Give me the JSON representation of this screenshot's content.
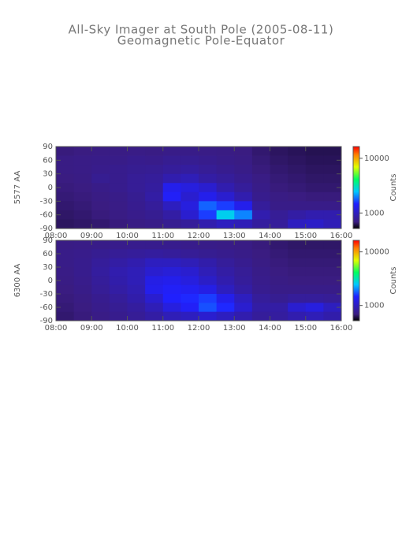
{
  "title": "All-Sky Imager at South Pole (2005-08-11)",
  "subtitle": "Geomagnetic Pole-Equator",
  "chart_data": [
    {
      "type": "heatmap",
      "ylabel": "5577 AA",
      "zlabel": "Counts",
      "x": [
        8.25,
        8.75,
        9.25,
        9.75,
        10.25,
        10.75,
        11.25,
        11.75,
        12.25,
        12.75,
        13.25,
        13.75,
        14.25,
        14.75,
        15.25,
        15.75
      ],
      "y": [
        80,
        60,
        40,
        20,
        0,
        -20,
        -40,
        -60,
        -80
      ],
      "z": [
        [
          680,
          690,
          700,
          700,
          710,
          700,
          720,
          720,
          710,
          700,
          690,
          660,
          640,
          630,
          620,
          620
        ],
        [
          700,
          710,
          720,
          720,
          740,
          730,
          760,
          760,
          740,
          720,
          700,
          670,
          650,
          640,
          630,
          630
        ],
        [
          700,
          710,
          730,
          740,
          760,
          770,
          800,
          820,
          780,
          750,
          720,
          680,
          660,
          650,
          640,
          640
        ],
        [
          690,
          700,
          760,
          740,
          780,
          800,
          900,
          950,
          850,
          800,
          750,
          700,
          670,
          660,
          650,
          650
        ],
        [
          680,
          690,
          720,
          740,
          780,
          820,
          1300,
          1200,
          1100,
          900,
          800,
          720,
          680,
          670,
          660,
          660
        ],
        [
          670,
          680,
          700,
          720,
          760,
          850,
          1400,
          1100,
          1300,
          1100,
          900,
          740,
          700,
          690,
          680,
          680
        ],
        [
          660,
          670,
          690,
          710,
          750,
          800,
          1000,
          1200,
          1800,
          1600,
          1300,
          800,
          720,
          720,
          720,
          720
        ],
        [
          650,
          660,
          680,
          700,
          730,
          760,
          850,
          1100,
          1600,
          2600,
          2000,
          900,
          780,
          850,
          900,
          900
        ],
        [
          640,
          650,
          660,
          680,
          700,
          720,
          760,
          800,
          900,
          1000,
          950,
          820,
          800,
          1000,
          1050,
          950
        ]
      ],
      "xlim": [
        8,
        16
      ],
      "ylim": [
        -90,
        90
      ],
      "xticks": [
        {
          "value": 8,
          "label": "08:00"
        },
        {
          "value": 9,
          "label": "09:00"
        },
        {
          "value": 10,
          "label": "10:00"
        },
        {
          "value": 11,
          "label": "11:00"
        },
        {
          "value": 12,
          "label": "12:00"
        },
        {
          "value": 13,
          "label": "13:00"
        },
        {
          "value": 14,
          "label": "14:00"
        },
        {
          "value": 15,
          "label": "15:00"
        },
        {
          "value": 16,
          "label": "16:00"
        }
      ],
      "yticks": [
        90,
        60,
        30,
        0,
        -30,
        -60,
        -90
      ],
      "zlim": [
        520,
        16400
      ],
      "zticks": [
        1000,
        10000
      ],
      "zlog": true,
      "colormap": [
        [
          0,
          "#000000"
        ],
        [
          0.08,
          "#3a1c80"
        ],
        [
          0.3,
          "#2020ff"
        ],
        [
          0.45,
          "#00c8ff"
        ],
        [
          0.6,
          "#00ff60"
        ],
        [
          0.75,
          "#e0ff00"
        ],
        [
          0.9,
          "#ff8000"
        ],
        [
          1,
          "#ff0000"
        ]
      ]
    },
    {
      "type": "heatmap",
      "ylabel": "6300 AA",
      "zlabel": "Counts",
      "x": [
        8.25,
        8.75,
        9.25,
        9.75,
        10.25,
        10.75,
        11.25,
        11.75,
        12.25,
        12.75,
        13.25,
        13.75,
        14.25,
        14.75,
        15.25,
        15.75
      ],
      "y": [
        80,
        60,
        40,
        20,
        0,
        -20,
        -40,
        -60,
        -80
      ],
      "z": [
        [
          700,
          710,
          720,
          730,
          740,
          740,
          740,
          730,
          720,
          710,
          700,
          680,
          660,
          650,
          650,
          650
        ],
        [
          720,
          730,
          760,
          780,
          800,
          820,
          800,
          780,
          760,
          740,
          720,
          690,
          670,
          660,
          660,
          660
        ],
        [
          720,
          740,
          800,
          850,
          900,
          1000,
          1000,
          950,
          880,
          800,
          750,
          700,
          680,
          670,
          670,
          670
        ],
        [
          710,
          740,
          820,
          900,
          950,
          1100,
          1150,
          1100,
          950,
          850,
          780,
          720,
          690,
          680,
          680,
          680
        ],
        [
          700,
          730,
          800,
          880,
          950,
          1250,
          1300,
          1200,
          1050,
          900,
          800,
          730,
          700,
          690,
          690,
          690
        ],
        [
          690,
          720,
          780,
          850,
          920,
          1300,
          1400,
          1350,
          1250,
          1000,
          850,
          750,
          720,
          720,
          720,
          720
        ],
        [
          680,
          700,
          750,
          800,
          880,
          1100,
          1450,
          1500,
          1600,
          1300,
          1000,
          800,
          760,
          800,
          800,
          780
        ],
        [
          670,
          690,
          730,
          770,
          820,
          950,
          1200,
          1400,
          1700,
          1500,
          1100,
          850,
          850,
          1100,
          1200,
          1000
        ],
        [
          660,
          680,
          710,
          740,
          780,
          850,
          950,
          1000,
          1100,
          1000,
          900,
          800,
          820,
          900,
          950,
          880
        ]
      ],
      "xlim": [
        8,
        16
      ],
      "ylim": [
        -90,
        90
      ],
      "xticks": [
        {
          "value": 8,
          "label": "08:00"
        },
        {
          "value": 9,
          "label": "09:00"
        },
        {
          "value": 10,
          "label": "10:00"
        },
        {
          "value": 11,
          "label": "11:00"
        },
        {
          "value": 12,
          "label": "12:00"
        },
        {
          "value": 13,
          "label": "13:00"
        },
        {
          "value": 14,
          "label": "14:00"
        },
        {
          "value": 15,
          "label": "15:00"
        },
        {
          "value": 16,
          "label": "16:00"
        }
      ],
      "yticks": [
        90,
        60,
        30,
        0,
        -30,
        -60,
        -90
      ],
      "zlim": [
        520,
        16400
      ],
      "zticks": [
        1000,
        10000
      ],
      "zlog": true,
      "colormap": [
        [
          0,
          "#000000"
        ],
        [
          0.08,
          "#3a1c80"
        ],
        [
          0.3,
          "#2020ff"
        ],
        [
          0.45,
          "#00c8ff"
        ],
        [
          0.6,
          "#00ff60"
        ],
        [
          0.75,
          "#e0ff00"
        ],
        [
          0.9,
          "#ff8000"
        ],
        [
          1,
          "#ff0000"
        ]
      ]
    }
  ]
}
